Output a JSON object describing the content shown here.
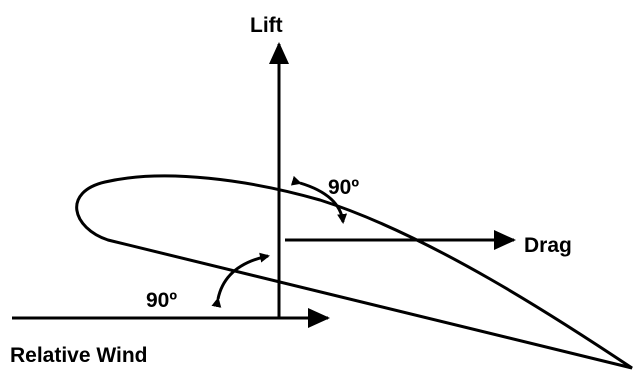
{
  "labels": {
    "lift": "Lift",
    "drag": "Drag",
    "relative_wind": "Relative Wind",
    "angle_upper": "90º",
    "angle_lower": "90º"
  }
}
